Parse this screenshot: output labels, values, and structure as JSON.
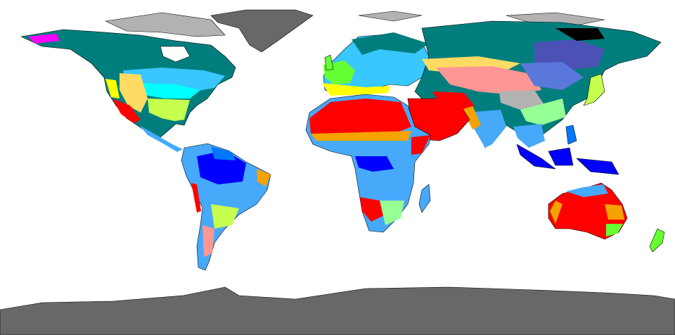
{
  "map": {
    "projection": "equirectangular",
    "background_color": "#ffffff",
    "border_color": "#000000",
    "climate_colors": {
      "Af": "#0000fe",
      "Am": "#0077ff",
      "Aw": "#46a9fa",
      "BWh": "#fe0000",
      "BWk": "#fe9695",
      "BSh": "#f5a301",
      "BSk": "#ffdb63",
      "Csa": "#ffff00",
      "Csb": "#c6c700",
      "Cfa": "#c6ff4e",
      "Cfb": "#66ff33",
      "Cwa": "#96ff96",
      "Dfa": "#00ffff",
      "Dfb": "#38c7ff",
      "Dfc": "#007e7d",
      "Dwb": "#5a77db",
      "Dwc": "#4c51b5",
      "Dsc": "#ff00fe",
      "ET": "#b2b2b2",
      "EF": "#686868"
    }
  }
}
